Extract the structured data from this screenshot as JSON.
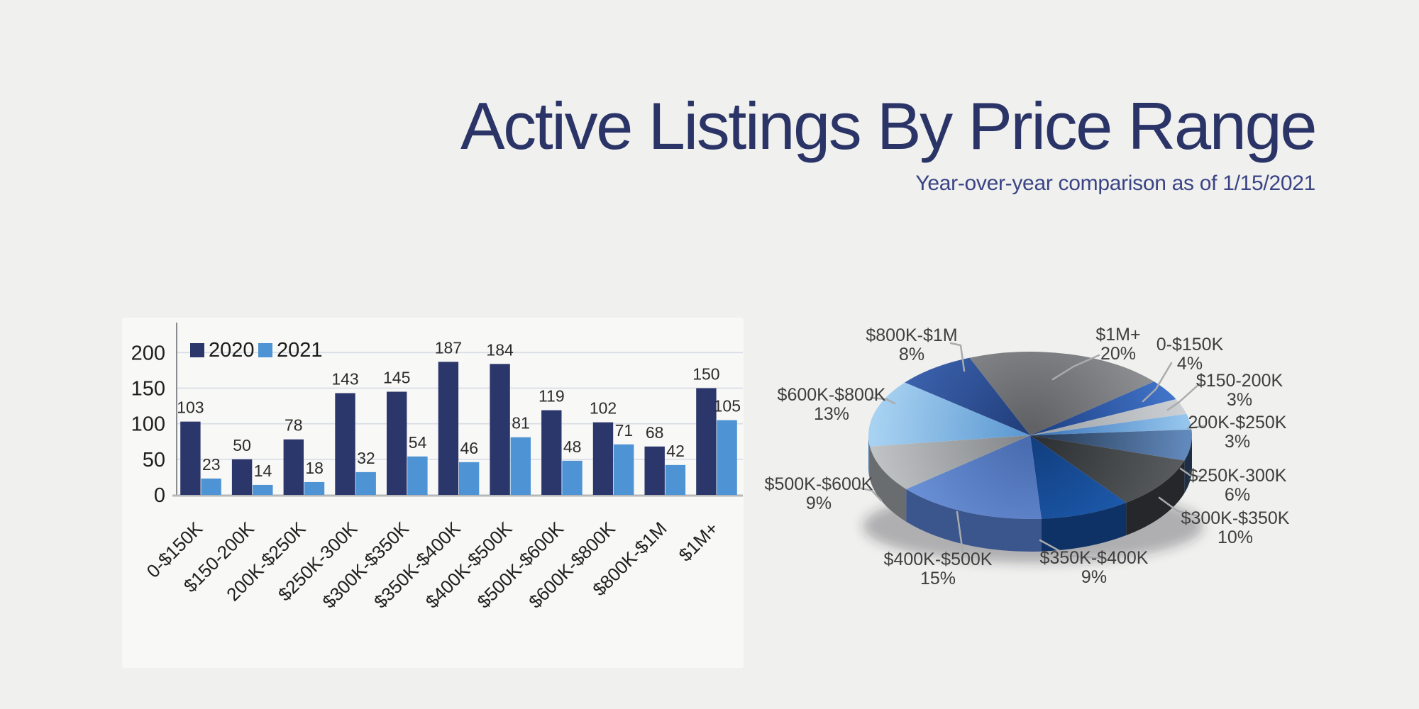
{
  "header": {
    "title": "Active Listings By Price Range",
    "subtitle": "Year-over-year comparison as of 1/15/2021"
  },
  "colors": {
    "background": "#F0F0EE",
    "panel": "#F8F8F6",
    "title": "#2B3467",
    "subtitle": "#3A4484",
    "grid": "#D7DCE6",
    "axis": "#8A8D90",
    "baseline": "#B6B8BA",
    "tick_text": "#1F1F1F",
    "value_text": "#2B2B2B",
    "pie_label_text": "#3E3E3E",
    "leader_line": "#A9ABAD",
    "series_2020": "#2B366B",
    "series_2021": "#4E93D4"
  },
  "chart_data": [
    {
      "type": "bar",
      "title": "",
      "categories": [
        "0-$150K",
        "$150-200K",
        "200K-$250K",
        "$250K-300K",
        "$300K-$350K",
        "$350K-$400K",
        "$400K-$500K",
        "$500K-$600K",
        "$600K-$800K",
        "$800K-$1M",
        "$1M+"
      ],
      "series": [
        {
          "name": "2020",
          "color": "#2B366B",
          "values": [
            103,
            50,
            78,
            143,
            145,
            187,
            184,
            119,
            102,
            68,
            150
          ]
        },
        {
          "name": "2021",
          "color": "#4E93D4",
          "values": [
            23,
            14,
            18,
            32,
            54,
            46,
            81,
            48,
            71,
            42,
            105
          ]
        }
      ],
      "xlabel": "",
      "ylabel": "",
      "ylim": [
        0,
        200
      ],
      "yticks": [
        0,
        50,
        100,
        150,
        200
      ],
      "grid": true,
      "legend_position": "top-left",
      "value_labels": true
    },
    {
      "type": "pie",
      "style": "3d",
      "unit": "%",
      "categories": [
        "0-$150K",
        "$150-200K",
        "200K-$250K",
        "$250K-300K",
        "$300K-$350K",
        "$350K-$400K",
        "$400K-$500K",
        "$500K-$600K",
        "$600K-$800K",
        "$800K-$1M",
        "$1M+"
      ],
      "values": [
        4,
        3,
        3,
        6,
        10,
        9,
        15,
        9,
        13,
        8,
        20
      ],
      "start_angle_deg": 50,
      "slice_colors": [
        [
          "#1F4186",
          "#4478CE"
        ],
        [
          "#9EA3A8",
          "#CDD1D5"
        ],
        [
          "#3E78BC",
          "#96C6EE"
        ],
        [
          "#263A55",
          "#6289BC"
        ],
        [
          "#2E3134",
          "#5A5D60"
        ],
        [
          "#123F80",
          "#2063BC"
        ],
        [
          "#4A6CB0",
          "#7097DE"
        ],
        [
          "#85888B",
          "#C0C3C6"
        ],
        [
          "#5E9AD2",
          "#A8D2F2"
        ],
        [
          "#223F7C",
          "#4068B6"
        ],
        [
          "#606265",
          "#97999C"
        ]
      ]
    }
  ]
}
